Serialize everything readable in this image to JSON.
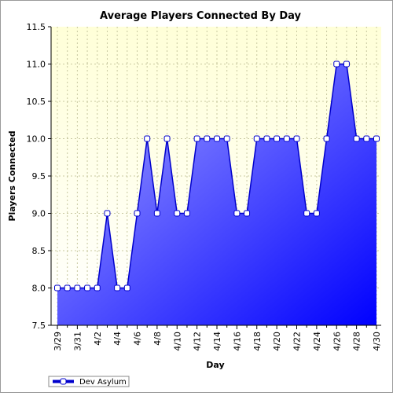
{
  "chart_data": {
    "type": "area",
    "title": "Average Players Connected By Day",
    "xlabel": "Day",
    "ylabel": "Players Connected",
    "ylim": [
      7.5,
      11.5
    ],
    "yticks": [
      "7.5",
      "8.0",
      "8.5",
      "9.0",
      "9.5",
      "10.0",
      "10.5",
      "11.0",
      "11.5"
    ],
    "categories": [
      "3/29",
      "3/30",
      "3/31",
      "4/1",
      "4/2",
      "4/3",
      "4/4",
      "4/5",
      "4/6",
      "4/7",
      "4/8",
      "4/9",
      "4/10",
      "4/11",
      "4/12",
      "4/13",
      "4/14",
      "4/15",
      "4/16",
      "4/17",
      "4/18",
      "4/19",
      "4/20",
      "4/21",
      "4/22",
      "4/23",
      "4/24",
      "4/25",
      "4/26",
      "4/27",
      "4/28",
      "4/29",
      "4/30"
    ],
    "xtick_labels": [
      "3/29",
      "3/31",
      "4/2",
      "4/4",
      "4/6",
      "4/8",
      "4/10",
      "4/12",
      "4/14",
      "4/16",
      "4/18",
      "4/20",
      "4/22",
      "4/24",
      "4/26",
      "4/28",
      "4/30"
    ],
    "series": [
      {
        "name": "Dev Asylum",
        "values": [
          8.0,
          8.0,
          8.0,
          8.0,
          8.0,
          9.0,
          8.0,
          8.0,
          9.0,
          10.0,
          9.0,
          10.0,
          9.0,
          9.0,
          10.0,
          10.0,
          10.0,
          10.0,
          9.0,
          9.0,
          10.0,
          10.0,
          10.0,
          10.0,
          10.0,
          9.0,
          9.0,
          10.0,
          11.0,
          11.0,
          10.0,
          10.0,
          10.0
        ]
      }
    ],
    "grid": true,
    "legend": "bottom-left",
    "colors": {
      "plot_bg_top": "#ffffd8",
      "plot_bg_bottom": "#ffffff",
      "area_light": "#aaaaff",
      "area_dark": "#0000ff",
      "line": "#0000cc",
      "grid": "#c8c8a0"
    }
  }
}
